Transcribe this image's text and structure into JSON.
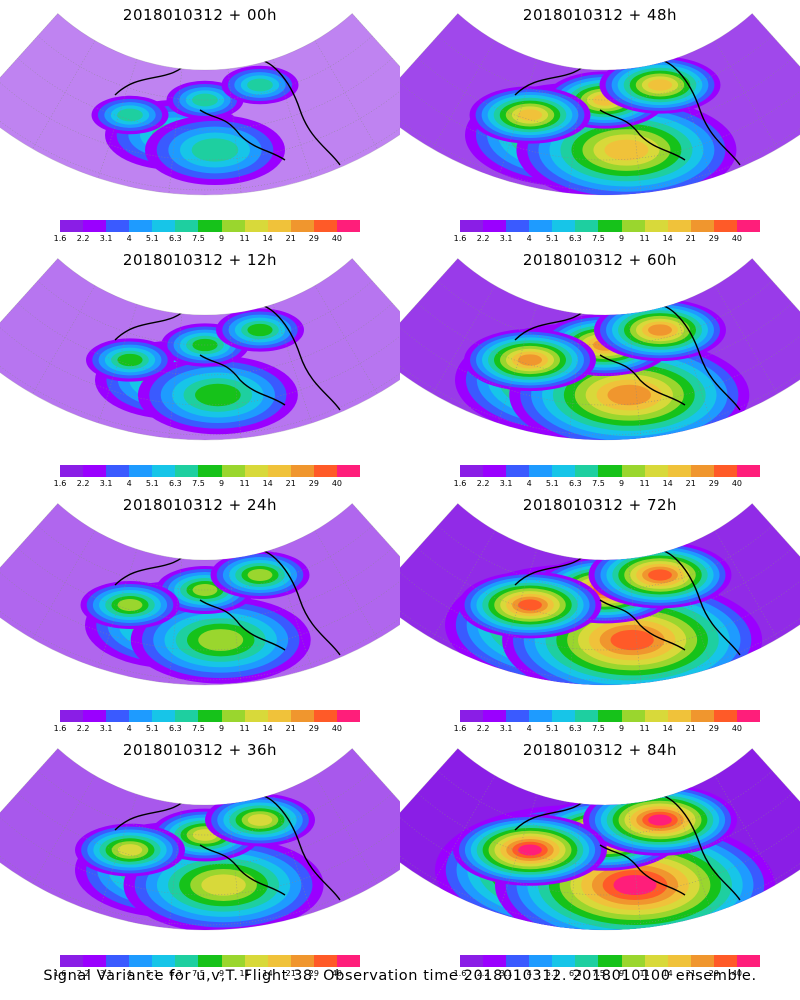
{
  "caption": "Signal Variance for u,v,T. Flight 38. Observation time 2018010312. 2018010100 ensemble.",
  "colorbar": {
    "labels": [
      "1.6",
      "2.2",
      "3.1",
      "4",
      "5.1",
      "6.3",
      "7.5",
      "9",
      "11",
      "14",
      "21",
      "29",
      "40"
    ],
    "colors": [
      "#8a1ee6",
      "#9a00ff",
      "#3a5aff",
      "#1e9bff",
      "#17c5e8",
      "#1ecfa0",
      "#16c21a",
      "#9ad62e",
      "#d8d93a",
      "#f0c23a",
      "#f0962e",
      "#ff5a28",
      "#ff1e7a"
    ]
  },
  "panels": [
    {
      "title": "2018010312 + 00h",
      "lead": 0
    },
    {
      "title": "2018010312 + 48h",
      "lead": 48
    },
    {
      "title": "2018010312 + 12h",
      "lead": 12
    },
    {
      "title": "2018010312 + 60h",
      "lead": 60
    },
    {
      "title": "2018010312 + 24h",
      "lead": 24
    },
    {
      "title": "2018010312 + 72h",
      "lead": 72
    },
    {
      "title": "2018010312 + 36h",
      "lead": 36
    },
    {
      "title": "2018010312 + 84h",
      "lead": 84
    }
  ]
}
